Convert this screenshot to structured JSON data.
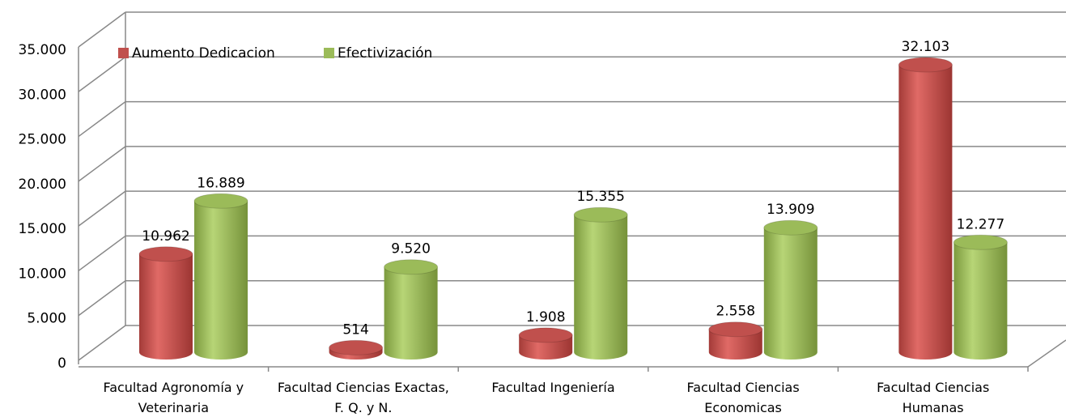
{
  "chart_data": {
    "type": "bar3d",
    "categories": [
      "Facultad Agronomía y Veterinaria",
      "Facultad Ciencias Exactas, F. Q. y N.",
      "Facultad Ingeniería",
      "Facultad Ciencias Economicas",
      "Facultad Ciencias Humanas"
    ],
    "series": [
      {
        "name": "Aumento Dedicacion",
        "color": "#c0504d",
        "values": [
          10962,
          514,
          1908,
          2558,
          32103
        ],
        "value_labels": [
          "10.962",
          "514",
          "1.908",
          "2.558",
          "32.103"
        ]
      },
      {
        "name": "Efectivización",
        "color": "#9bbb59",
        "values": [
          16889,
          9520,
          15355,
          13909,
          12277
        ],
        "value_labels": [
          "16.889",
          "9.520",
          "15.355",
          "13.909",
          "12.277"
        ]
      }
    ],
    "ylim": [
      0,
      35000
    ],
    "yticks": [
      0,
      {
        "value": 5000,
        "label": "5.000"
      },
      {
        "value": 10000,
        "label": "10.000"
      },
      {
        "value": 15000,
        "label": "15.000"
      },
      {
        "value": 20000,
        "label": "20.000"
      },
      {
        "value": 25000,
        "label": "25.000"
      },
      {
        "value": 30000,
        "label": "30.000"
      },
      {
        "value": 35000,
        "label": "35.000"
      }
    ],
    "grid": true,
    "legend": "top-left"
  }
}
